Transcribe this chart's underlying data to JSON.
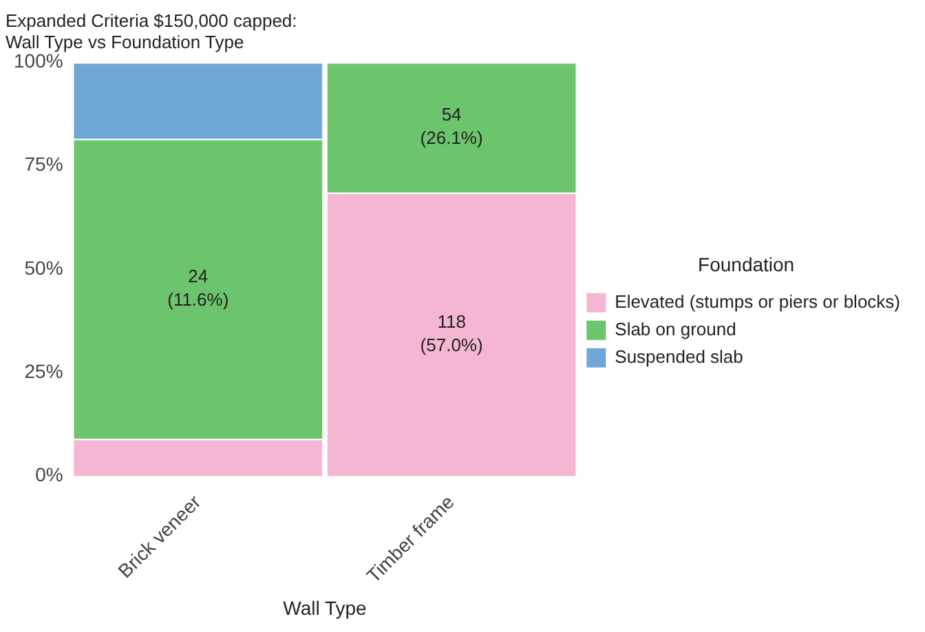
{
  "chart_data": {
    "type": "bar",
    "title": "Expanded Criteria $150,000 capped:\nWall Type vs Foundation Type",
    "xlabel": "Wall Type",
    "legend_title": "Foundation",
    "categories": [
      "Brick veneer",
      "Timber frame"
    ],
    "stacked": true,
    "series": [
      {
        "name": "Elevated (stumps or piers or blocks)",
        "color": "#f4b6d2",
        "values": [
          9,
          68.5
        ]
      },
      {
        "name": "Slab on ground",
        "color": "#6cc46c",
        "values": [
          72.5,
          31.5
        ]
      },
      {
        "name": "Suspended slab",
        "color": "#6fa8d6",
        "values": [
          18.5,
          null
        ]
      }
    ],
    "annotations": [
      "24\n(11.6%)",
      "118\n(57.0%)",
      "54\n(26.1%)"
    ],
    "ylim": [
      0,
      100
    ],
    "yticks": [
      {
        "value": 0,
        "label": "0%"
      },
      {
        "value": 25,
        "label": "25%"
      },
      {
        "value": 50,
        "label": "50%"
      },
      {
        "value": 75,
        "label": "75%"
      },
      {
        "value": 100,
        "label": "100%"
      }
    ],
    "grid": false,
    "legend": "right"
  }
}
